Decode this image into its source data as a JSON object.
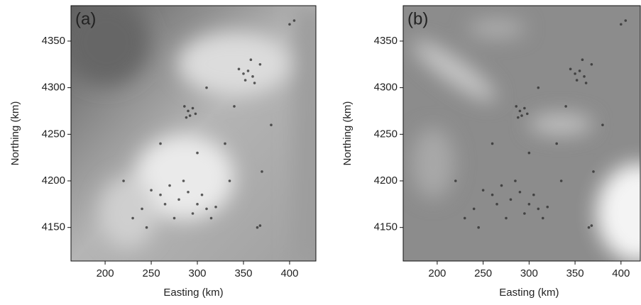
{
  "chart_data": [
    {
      "type": "scatter",
      "title": "(a)",
      "x_label": "Easting (km)",
      "y_label": "Northing (km)",
      "xlim": [
        163,
        428.5
      ],
      "ylim": [
        4114,
        4388
      ],
      "xticks": [
        200,
        250,
        300,
        350,
        400
      ],
      "yticks": [
        4150,
        4200,
        4250,
        4300,
        4350
      ],
      "color": "#2a2a2a",
      "x": [
        290,
        292,
        286,
        295,
        288,
        298,
        350,
        355,
        360,
        345,
        362,
        352,
        368,
        358,
        250,
        260,
        270,
        280,
        290,
        300,
        310,
        320,
        265,
        285,
        295,
        305,
        240,
        230,
        275,
        315,
        365,
        368,
        405,
        400,
        300,
        330,
        260,
        220,
        380,
        340,
        310,
        370,
        245,
        335
      ],
      "y": [
        4275,
        4270,
        4280,
        4278,
        4268,
        4272,
        4315,
        4318,
        4312,
        4320,
        4305,
        4308,
        4325,
        4330,
        4190,
        4185,
        4195,
        4180,
        4188,
        4175,
        4170,
        4172,
        4175,
        4200,
        4165,
        4185,
        4170,
        4160,
        4160,
        4160,
        4150,
        4152,
        4372,
        4368,
        4230,
        4240,
        4240,
        4200,
        4260,
        4280,
        4300,
        4210,
        4150,
        4200
      ]
    },
    {
      "type": "scatter",
      "title": "(b)",
      "x_label": "Easting (km)",
      "y_label": "Northing (km)",
      "xlim": [
        163,
        421
      ],
      "ylim": [
        4114,
        4388
      ],
      "xticks": [
        200,
        250,
        300,
        350,
        400
      ],
      "yticks": [
        4150,
        4200,
        4250,
        4300,
        4350
      ],
      "color": "#2a2a2a",
      "x": [
        290,
        292,
        286,
        295,
        288,
        298,
        350,
        355,
        360,
        345,
        362,
        352,
        368,
        358,
        250,
        260,
        270,
        280,
        290,
        300,
        310,
        320,
        265,
        285,
        295,
        305,
        240,
        230,
        275,
        315,
        365,
        368,
        405,
        400,
        300,
        330,
        260,
        220,
        380,
        340,
        310,
        370,
        245,
        335
      ],
      "y": [
        4275,
        4270,
        4280,
        4278,
        4268,
        4272,
        4315,
        4318,
        4312,
        4320,
        4305,
        4308,
        4325,
        4330,
        4190,
        4185,
        4195,
        4180,
        4188,
        4175,
        4170,
        4172,
        4175,
        4200,
        4165,
        4185,
        4170,
        4160,
        4160,
        4160,
        4150,
        4152,
        4372,
        4368,
        4230,
        4240,
        4240,
        4200,
        4260,
        4280,
        4300,
        4210,
        4150,
        4200
      ]
    }
  ]
}
